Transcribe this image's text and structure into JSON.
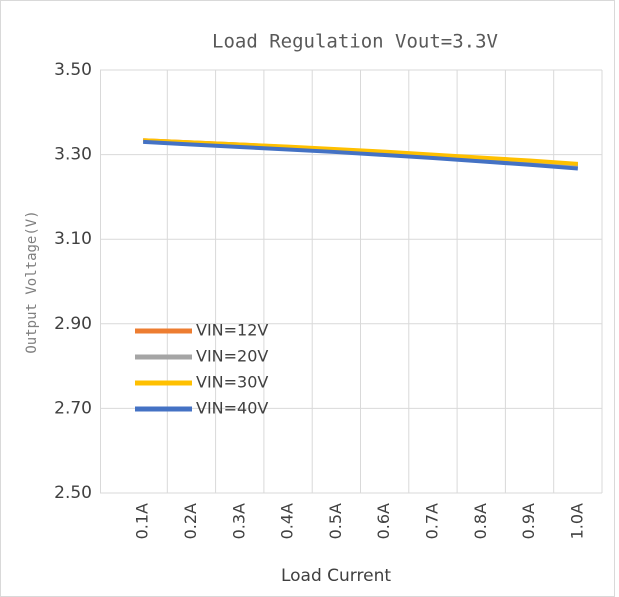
{
  "chart_data": {
    "type": "line",
    "title": "Load Regulation  Vout=3.3V",
    "x_label": "Load Current",
    "y_label": "Output Voltage(V)",
    "categories": [
      "0.1A",
      "0.2A",
      "0.3A",
      "0.4A",
      "0.5A",
      "0.6A",
      "0.7A",
      "0.8A",
      "0.9A",
      "1.0A"
    ],
    "series": [
      {
        "name": "VIN=12V",
        "color": "#ed7d31",
        "values": [
          3.334,
          3.329,
          3.324,
          3.318,
          3.312,
          3.306,
          3.299,
          3.291,
          3.284,
          3.276
        ]
      },
      {
        "name": "VIN=20V",
        "color": "#a5a5a5",
        "values": [
          3.333,
          3.328,
          3.323,
          3.317,
          3.311,
          3.305,
          3.298,
          3.29,
          3.283,
          3.275
        ]
      },
      {
        "name": "VIN=30V",
        "color": "#ffc000",
        "values": [
          3.334,
          3.329,
          3.324,
          3.319,
          3.313,
          3.307,
          3.3,
          3.293,
          3.286,
          3.278
        ]
      },
      {
        "name": "VIN=40V",
        "color": "#4472c4",
        "values": [
          3.33,
          3.324,
          3.318,
          3.312,
          3.306,
          3.299,
          3.292,
          3.284,
          3.276,
          3.267
        ]
      }
    ],
    "ylim": [
      2.5,
      3.5
    ],
    "yticks": [
      {
        "value": 2.5,
        "label": "2.50"
      },
      {
        "value": 2.7,
        "label": "2.70"
      },
      {
        "value": 2.9,
        "label": "2.90"
      },
      {
        "value": 3.1,
        "label": "3.10"
      },
      {
        "value": 3.3,
        "label": "3.30"
      },
      {
        "value": 3.5,
        "label": "3.50"
      }
    ],
    "grid": true,
    "legend": "left"
  }
}
